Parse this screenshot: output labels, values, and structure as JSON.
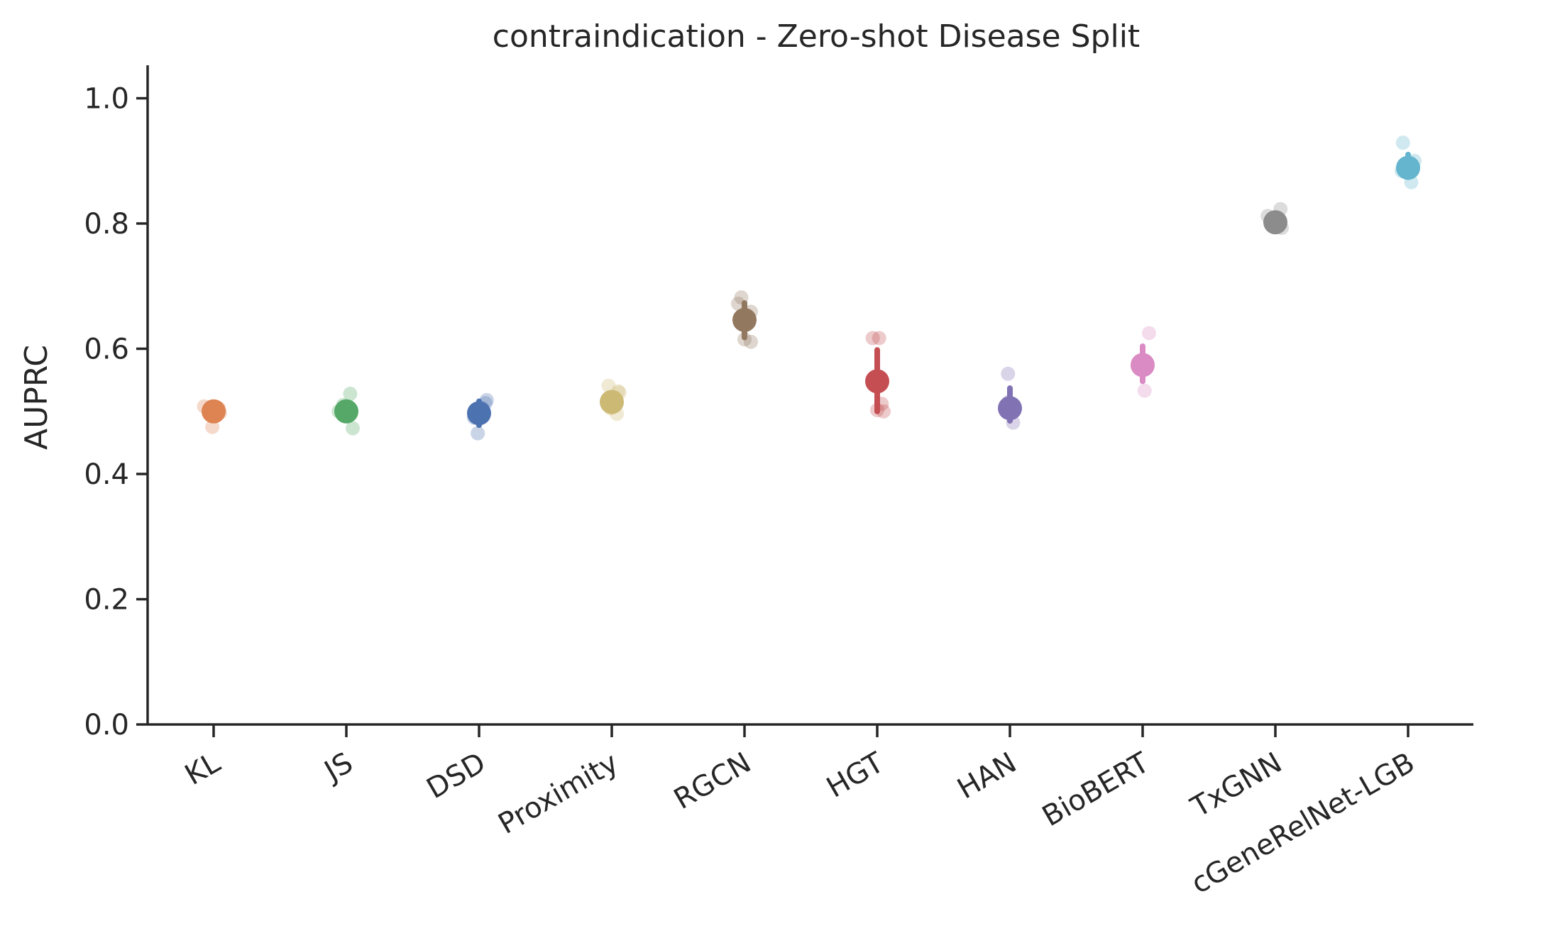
{
  "chart_data": {
    "type": "scatter",
    "title": "contraindication - Zero-shot Disease Split",
    "xlabel": "",
    "ylabel": "AUPRC",
    "ylim": [
      0,
      1.05
    ],
    "yticks": [
      0.0,
      0.2,
      0.4,
      0.6,
      0.8,
      1.0
    ],
    "ytick_labels": [
      "0.0",
      "0.2",
      "0.4",
      "0.6",
      "0.8",
      "1.0"
    ],
    "grid": false,
    "legend": "none",
    "categories": [
      "KL",
      "JS",
      "DSD",
      "Proximity",
      "RGCN",
      "HGT",
      "HAN",
      "BioBERT",
      "TxGNN",
      "cGeneRelNet-LGB"
    ],
    "colors": [
      "#dd8452",
      "#55a868",
      "#4c72b0",
      "#ccb974",
      "#937860",
      "#c44e52",
      "#8172b3",
      "#da8bc3",
      "#8c8c8c",
      "#64b5cd"
    ],
    "means": [
      0.5,
      0.5,
      0.497,
      0.515,
      0.646,
      0.548,
      0.505,
      0.574,
      0.802,
      0.889
    ],
    "error_bars": [
      [
        0.493,
        0.507
      ],
      [
        0.493,
        0.507
      ],
      [
        0.478,
        0.516
      ],
      [
        0.503,
        0.527
      ],
      [
        0.618,
        0.673
      ],
      [
        0.5,
        0.598
      ],
      [
        0.485,
        0.537
      ],
      [
        0.548,
        0.604
      ],
      [
        0.792,
        0.812
      ],
      [
        0.874,
        0.91
      ]
    ],
    "points": [
      {
        "x": [
          -0.15,
          -0.02,
          0.08,
          0.0,
          0.1
        ],
        "y": [
          0.508,
          0.475,
          0.505,
          0.495,
          0.498
        ]
      },
      {
        "x": [
          -0.12,
          0.06,
          0.1,
          -0.05,
          0.05
        ],
        "y": [
          0.5,
          0.528,
          0.473,
          0.51,
          0.495
        ]
      },
      {
        "x": [
          -0.08,
          0.1,
          -0.02,
          0.05,
          0.12
        ],
        "y": [
          0.49,
          0.513,
          0.465,
          0.505,
          0.518
        ]
      },
      {
        "x": [
          -0.05,
          0.1,
          -0.02,
          0.08,
          0.12
        ],
        "y": [
          0.541,
          0.532,
          0.505,
          0.496,
          0.53
        ]
      },
      {
        "x": [
          -0.1,
          -0.05,
          0.1,
          0.0,
          0.1
        ],
        "y": [
          0.672,
          0.682,
          0.659,
          0.615,
          0.611
        ]
      },
      {
        "x": [
          -0.07,
          0.03,
          0.07,
          0.1,
          0.0
        ],
        "y": [
          0.617,
          0.617,
          0.512,
          0.5,
          0.502
        ]
      },
      {
        "x": [
          -0.03,
          0.0,
          0.05,
          0.05,
          -0.02
        ],
        "y": [
          0.56,
          0.51,
          0.5,
          0.482,
          0.515
        ]
      },
      {
        "x": [
          -0.08,
          0.1,
          0.03,
          -0.05,
          0.05
        ],
        "y": [
          0.573,
          0.625,
          0.533,
          0.58,
          0.568
        ]
      },
      {
        "x": [
          -0.12,
          0.08,
          0.1,
          -0.05,
          0.02
        ],
        "y": [
          0.812,
          0.823,
          0.793,
          0.805,
          0.8
        ]
      },
      {
        "x": [
          -0.1,
          -0.08,
          0.05,
          0.08,
          0.1
        ],
        "y": [
          0.884,
          0.929,
          0.866,
          0.89,
          0.9
        ]
      }
    ]
  }
}
